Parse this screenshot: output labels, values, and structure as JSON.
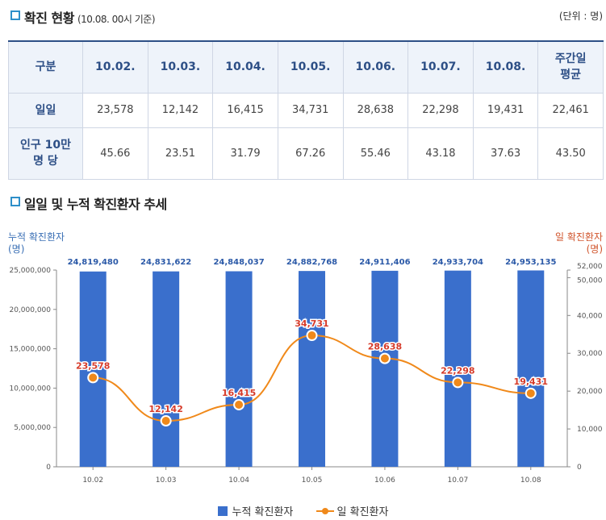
{
  "section1": {
    "title": "확진 현황",
    "note": "(10.08. 00시 기준)",
    "unit": "(단위 : 명)"
  },
  "table": {
    "header": [
      "구분",
      "10.02.",
      "10.03.",
      "10.04.",
      "10.05.",
      "10.06.",
      "10.07.",
      "10.08.",
      "주간일\n평균"
    ],
    "rows": [
      {
        "label": "일일",
        "values": [
          "23,578",
          "12,142",
          "16,415",
          "34,731",
          "28,638",
          "22,298",
          "19,431",
          "22,461"
        ]
      },
      {
        "label": "인구 10만\n명 당",
        "values": [
          "45.66",
          "23.51",
          "31.79",
          "67.26",
          "55.46",
          "43.18",
          "37.63",
          "43.50"
        ]
      }
    ]
  },
  "section2": {
    "title": "일일 및 누적 확진환자 추세"
  },
  "chart_data": {
    "type": "bar",
    "title": "일일 및 누적 확진환자 추세",
    "categories": [
      "10.02",
      "10.03",
      "10.04",
      "10.05",
      "10.06",
      "10.07",
      "10.08"
    ],
    "ylabel_left": "누적 확진환자",
    "ylabel_left_unit": "(명)",
    "ylabel_right": "일 확진환자",
    "ylabel_right_unit": "(명)",
    "ylim_left": [
      0,
      25000000
    ],
    "ylim_right": [
      0,
      52000
    ],
    "yticks_left": [
      "0",
      "5,000,000",
      "10,000,000",
      "15,000,000",
      "20,000,000",
      "25,000,000"
    ],
    "yticks_right": [
      "0",
      "10,000",
      "20,000",
      "30,000",
      "40,000",
      "50,000",
      "52,000"
    ],
    "series": [
      {
        "name": "누적 확진환자",
        "kind": "bar",
        "axis": "left",
        "color": "#3a6fcc",
        "values": [
          24819480,
          24831622,
          24848037,
          24882768,
          24911406,
          24933704,
          24953135
        ],
        "labels": [
          "24,819,480",
          "24,831,622",
          "24,848,037",
          "24,882,768",
          "24,911,406",
          "24,933,704",
          "24,953,135"
        ]
      },
      {
        "name": "일 확진환자",
        "kind": "line",
        "axis": "right",
        "color": "#f0891a",
        "label_color": "#d63b2a",
        "values": [
          23578,
          12142,
          16415,
          34731,
          28638,
          22298,
          19431
        ],
        "labels": [
          "23,578",
          "12,142",
          "16,415",
          "34,731",
          "28,638",
          "22,298",
          "19,431"
        ]
      }
    ],
    "legend": [
      "누적 확진환자",
      "일 확진환자"
    ],
    "legend_position": "bottom"
  }
}
